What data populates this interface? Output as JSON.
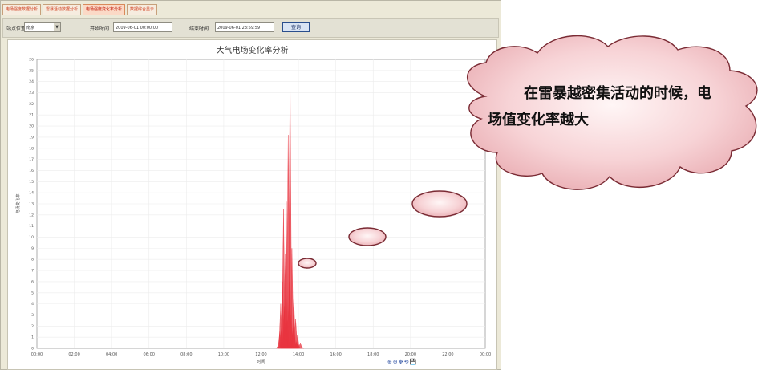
{
  "tabs": [
    {
      "label": "电场强度数据分析"
    },
    {
      "label": "雷暴活动数据分析"
    },
    {
      "label": "电场强度变化率分析"
    },
    {
      "label": "数据综合显示"
    }
  ],
  "toolbar": {
    "station_label": "站点位置",
    "station_value": "南京",
    "start_label": "开始时间",
    "start_value": "2009-06-01 00:00:00",
    "end_label": "结束时间",
    "end_value": "2009-06-01 23:59:59",
    "query_label": "查询"
  },
  "chart_toolbar": {
    "icons": "⊕⊖✥⟲💾"
  },
  "chart_data": {
    "type": "area",
    "title": "大气电场变化率分析",
    "xlabel": "时间",
    "ylabel": "电场变化率",
    "x_ticks": [
      "00:00",
      "02:00",
      "04:00",
      "06:00",
      "08:00",
      "10:00",
      "12:00",
      "14:00",
      "16:00",
      "18:00",
      "20:00",
      "22:00",
      "00:00"
    ],
    "ylim": [
      0,
      26
    ],
    "grid": true,
    "series": [
      {
        "x": [
          12.9,
          13.0,
          13.05,
          13.1,
          13.15,
          13.2,
          13.25,
          13.3,
          13.35,
          13.4,
          13.45,
          13.5,
          13.55,
          13.6,
          13.65,
          13.7,
          13.75,
          13.8,
          13.85,
          13.9,
          13.95,
          14.0,
          14.1,
          14.2
        ],
        "values": [
          0.2,
          1.5,
          4.0,
          2.2,
          6.0,
          12.5,
          3.8,
          8.5,
          13.2,
          2.5,
          19.2,
          6.0,
          24.8,
          3.0,
          9.0,
          1.8,
          4.5,
          1.0,
          2.6,
          0.6,
          1.2,
          0.3,
          0.5,
          0.1
        ]
      }
    ],
    "color": "#e8343f"
  },
  "callout": {
    "text": "在雷暴越密集活动的时候，电场值变化率越大"
  }
}
